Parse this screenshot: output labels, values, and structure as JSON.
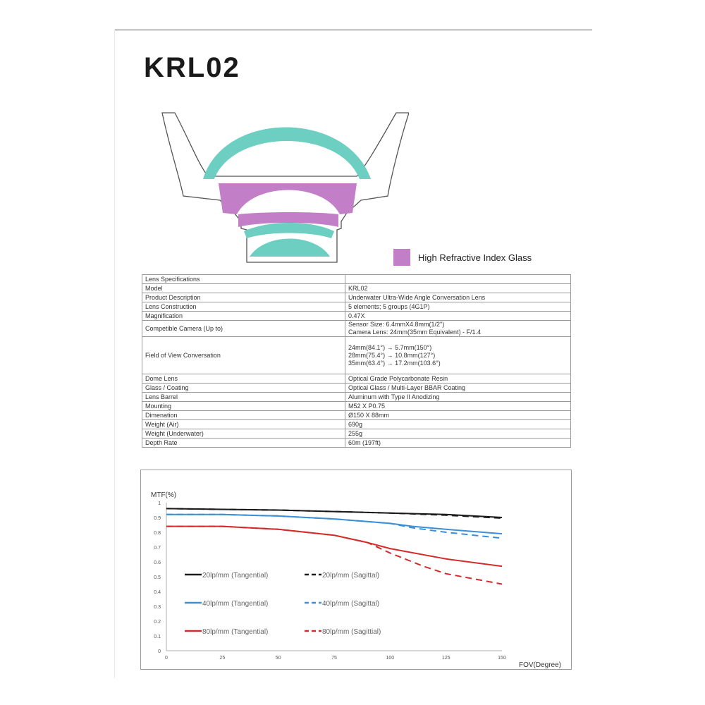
{
  "title": "KRL02",
  "colors": {
    "dome": "#6dcfc2",
    "high_index": "#c27fc7",
    "element": "#6dcfc2"
  },
  "legend": {
    "label": "High Refractive Index Glass"
  },
  "specs": {
    "header": "Lens Specifications",
    "rows": [
      {
        "key": "Model",
        "lines": [
          "KRL02"
        ]
      },
      {
        "key": "Product Description",
        "lines": [
          "Underwater Ultra-Wide Angle Conversation Lens"
        ]
      },
      {
        "key": "Lens Construction",
        "lines": [
          "5 elements; 5 groups (4G1P)"
        ]
      },
      {
        "key": "Magnification",
        "lines": [
          "0.47X"
        ]
      },
      {
        "key": "Competible Camera (Up to)",
        "lines": [
          "Sensor Size: 6.4mmX4.8mm(1/2\")",
          "Camera Lens: 24mm(35mm Equivalent) - F/1.4"
        ]
      },
      {
        "key": "Field of View Conversation",
        "lines": [
          "24mm(84.1°) → 5.7mm(150°)",
          "28mm(75.4°) → 10.8mm(127°)",
          "35mm(63.4°) → 17.2mm(103.6°)"
        ]
      },
      {
        "key": "Dome Lens",
        "lines": [
          "Optical Grade Polycarbonate Resin"
        ]
      },
      {
        "key": "Glass / Coating",
        "lines": [
          "Optical Glass / Multi-Layer BBAR Coating"
        ]
      },
      {
        "key": "Lens Barrel",
        "lines": [
          "Aluminum with Type II Anodizing"
        ]
      },
      {
        "key": "Mounting",
        "lines": [
          "M52 X P0.75"
        ]
      },
      {
        "key": "Dimenation",
        "lines": [
          "Ø150 X 88mm"
        ]
      },
      {
        "key": "Weight (Air)",
        "lines": [
          "690g"
        ]
      },
      {
        "key": "Weight (Underwater)",
        "lines": [
          "255g"
        ]
      },
      {
        "key": "Depth Rate",
        "lines": [
          "60m (197ft)"
        ]
      }
    ]
  },
  "chart_data": {
    "type": "line",
    "ylabel": "MTF(%)",
    "xlabel": "FOV(Degree)",
    "xlim": [
      0,
      150
    ],
    "ylim": [
      0,
      1
    ],
    "x_ticks": [
      "0",
      "25",
      "50",
      "75",
      "100",
      "125",
      "150"
    ],
    "y_ticks": [
      "0",
      "0.1",
      "0.2",
      "0.3",
      "0.4",
      "0.5",
      "0.6",
      "0.7",
      "0.8",
      "0.9",
      "1"
    ],
    "series": [
      {
        "name": "20lp/mm (Tangential)",
        "color": "#1a1a1a",
        "dash": false,
        "x": [
          0,
          25,
          50,
          75,
          100,
          125,
          150
        ],
        "y": [
          0.96,
          0.955,
          0.95,
          0.94,
          0.93,
          0.92,
          0.9
        ]
      },
      {
        "name": "20lp/mm (Sagittal)",
        "color": "#1a1a1a",
        "dash": true,
        "x": [
          0,
          25,
          50,
          75,
          100,
          125,
          150
        ],
        "y": [
          0.96,
          0.955,
          0.95,
          0.94,
          0.93,
          0.915,
          0.895
        ]
      },
      {
        "name": "40lp/mm (Tangential)",
        "color": "#3a8fd6",
        "dash": false,
        "x": [
          0,
          25,
          50,
          75,
          100,
          110,
          125,
          150
        ],
        "y": [
          0.92,
          0.92,
          0.91,
          0.89,
          0.86,
          0.84,
          0.82,
          0.79
        ]
      },
      {
        "name": "40lp/mm (Sagittal)",
        "color": "#3a8fd6",
        "dash": true,
        "x": [
          0,
          25,
          50,
          75,
          100,
          110,
          125,
          150
        ],
        "y": [
          0.92,
          0.92,
          0.91,
          0.89,
          0.86,
          0.83,
          0.8,
          0.76
        ]
      },
      {
        "name": "80lp/mm (Tangential)",
        "color": "#d42a2a",
        "dash": false,
        "x": [
          0,
          25,
          50,
          75,
          90,
          100,
          125,
          150
        ],
        "y": [
          0.84,
          0.84,
          0.82,
          0.78,
          0.73,
          0.69,
          0.62,
          0.57
        ]
      },
      {
        "name": "80lp/mm (Sagittial)",
        "color": "#d42a2a",
        "dash": true,
        "x": [
          0,
          25,
          50,
          75,
          90,
          100,
          115,
          125,
          150
        ],
        "y": [
          0.84,
          0.84,
          0.82,
          0.78,
          0.73,
          0.66,
          0.57,
          0.52,
          0.45
        ]
      }
    ]
  }
}
